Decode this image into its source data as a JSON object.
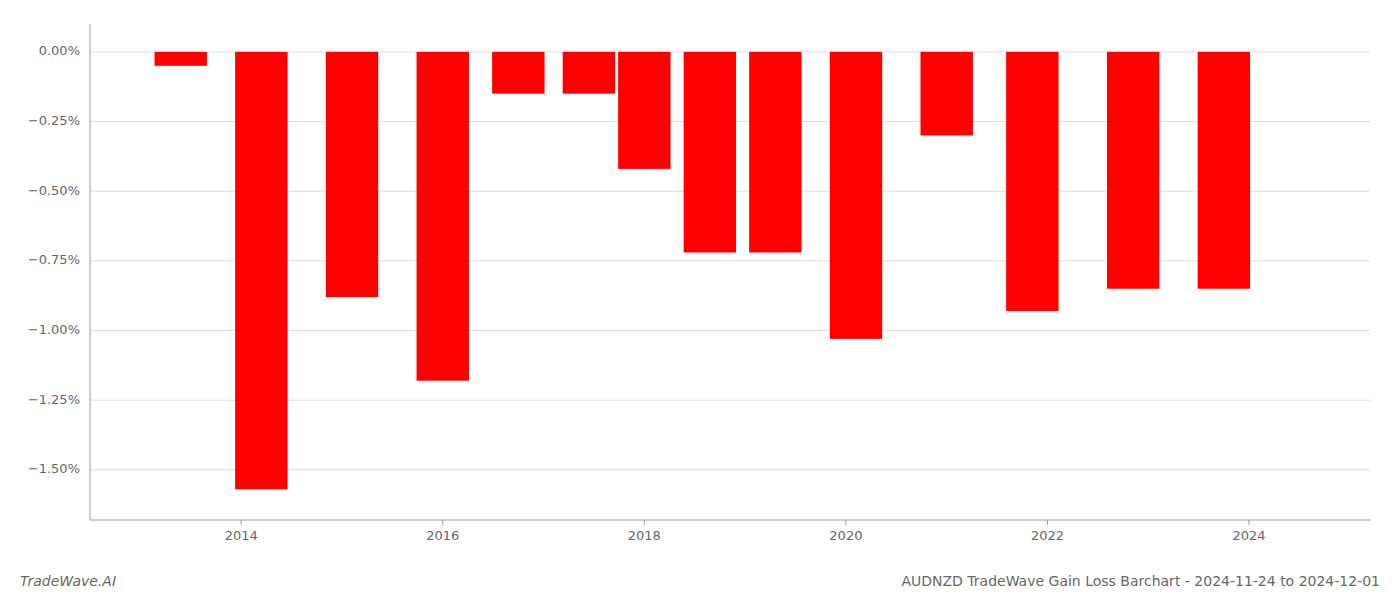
{
  "chart_data": {
    "type": "bar",
    "title": "AUDNZD TradeWave Gain Loss Barchart - 2024-11-24 to 2024-12-01",
    "annotations": [
      "TradeWave.AI"
    ],
    "x": [
      2013.4,
      2014.2,
      2015.1,
      2016.0,
      2016.75,
      2017.45,
      2018.0,
      2018.65,
      2019.3,
      2020.1,
      2021.0,
      2021.85,
      2022.85,
      2023.75
    ],
    "values": [
      -0.05,
      -1.57,
      -0.88,
      -1.18,
      -0.15,
      -0.15,
      -0.42,
      -0.72,
      -0.72,
      -1.03,
      -0.3,
      -0.93,
      -0.85,
      -0.85
    ],
    "color": "#ff0000",
    "xlim": [
      2012.5,
      2025.2
    ],
    "ylim": [
      -1.68,
      0.1
    ],
    "xticks": [
      2014,
      2016,
      2018,
      2020,
      2022,
      2024
    ],
    "yticks": [
      {
        "value": 0.0,
        "label": "0.00%"
      },
      {
        "value": -0.25,
        "label": "−0.25%"
      },
      {
        "value": -0.5,
        "label": "−0.50%"
      },
      {
        "value": -0.75,
        "label": "−0.75%"
      },
      {
        "value": -1.0,
        "label": "−1.00%"
      },
      {
        "value": -1.25,
        "label": "−1.25%"
      },
      {
        "value": -1.5,
        "label": "−1.50%"
      }
    ],
    "grid": true
  }
}
